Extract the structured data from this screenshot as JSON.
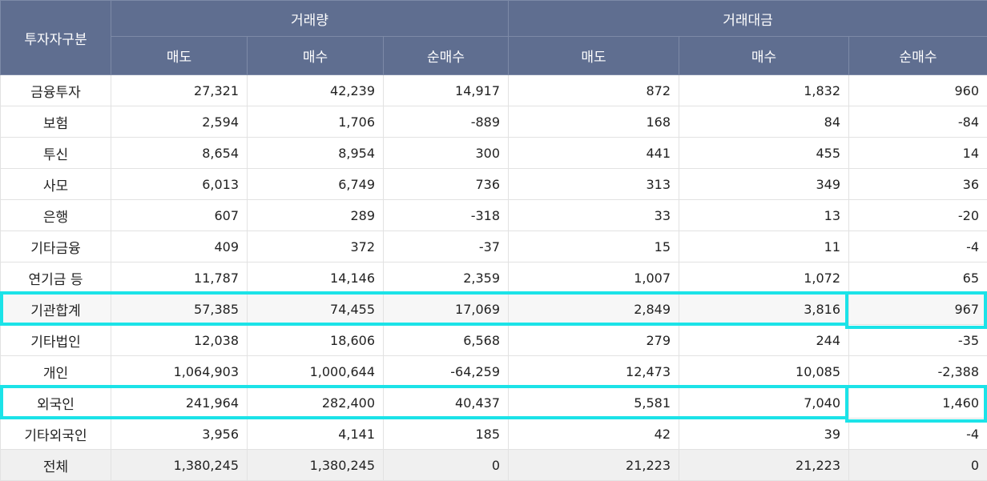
{
  "header": {
    "category": "투자자구분",
    "group_volume": "거래량",
    "group_value": "거래대금",
    "sub": [
      "매도",
      "매수",
      "순매수",
      "매도",
      "매수",
      "순매수"
    ]
  },
  "rows": [
    {
      "label": "금융투자",
      "values": [
        "27,321",
        "42,239",
        "14,917",
        "872",
        "1,832",
        "960"
      ]
    },
    {
      "label": "보험",
      "values": [
        "2,594",
        "1,706",
        "-889",
        "168",
        "84",
        "-84"
      ]
    },
    {
      "label": "투신",
      "values": [
        "8,654",
        "8,954",
        "300",
        "441",
        "455",
        "14"
      ]
    },
    {
      "label": "사모",
      "values": [
        "6,013",
        "6,749",
        "736",
        "313",
        "349",
        "36"
      ]
    },
    {
      "label": "은행",
      "values": [
        "607",
        "289",
        "-318",
        "33",
        "13",
        "-20"
      ]
    },
    {
      "label": "기타금융",
      "values": [
        "409",
        "372",
        "-37",
        "15",
        "11",
        "-4"
      ]
    },
    {
      "label": "연기금 등",
      "values": [
        "11,787",
        "14,146",
        "2,359",
        "1,007",
        "1,072",
        "65"
      ]
    },
    {
      "label": "기관합계",
      "values": [
        "57,385",
        "74,455",
        "17,069",
        "2,849",
        "3,816",
        "967"
      ]
    },
    {
      "label": "기타법인",
      "values": [
        "12,038",
        "18,606",
        "6,568",
        "279",
        "244",
        "-35"
      ]
    },
    {
      "label": "개인",
      "values": [
        "1,064,903",
        "1,000,644",
        "-64,259",
        "12,473",
        "10,085",
        "-2,388"
      ]
    },
    {
      "label": "외국인",
      "values": [
        "241,964",
        "282,400",
        "40,437",
        "5,581",
        "7,040",
        "1,460"
      ]
    },
    {
      "label": "기타외국인",
      "values": [
        "3,956",
        "4,141",
        "185",
        "42",
        "39",
        "-4"
      ]
    },
    {
      "label": "전체",
      "values": [
        "1,380,245",
        "1,380,245",
        "0",
        "21,223",
        "21,223",
        "0"
      ]
    }
  ],
  "highlight_color": "#1be3e8"
}
